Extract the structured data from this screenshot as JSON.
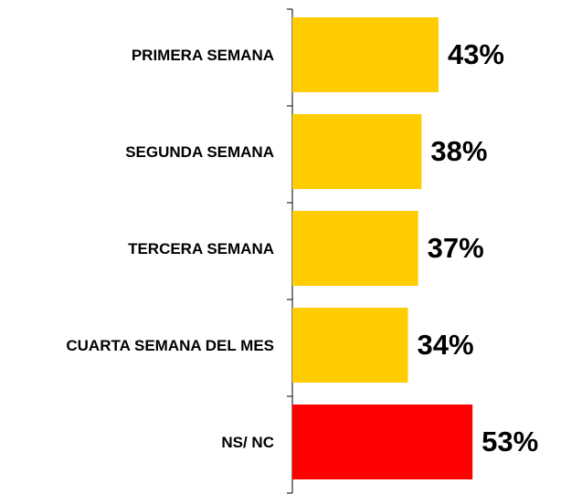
{
  "chart_data": {
    "type": "bar",
    "categories": [
      "PRIMERA SEMANA",
      "SEGUNDA SEMANA",
      "TERCERA SEMANA",
      "CUARTA SEMANA DEL MES",
      "NS/ NC"
    ],
    "values": [
      43,
      38,
      37,
      34,
      53
    ],
    "value_labels": [
      "43%",
      "38%",
      "37%",
      "34%",
      "53%"
    ],
    "colors": [
      "#ffcc00",
      "#ffcc00",
      "#ffcc00",
      "#ffcc00",
      "#ff0000"
    ]
  }
}
